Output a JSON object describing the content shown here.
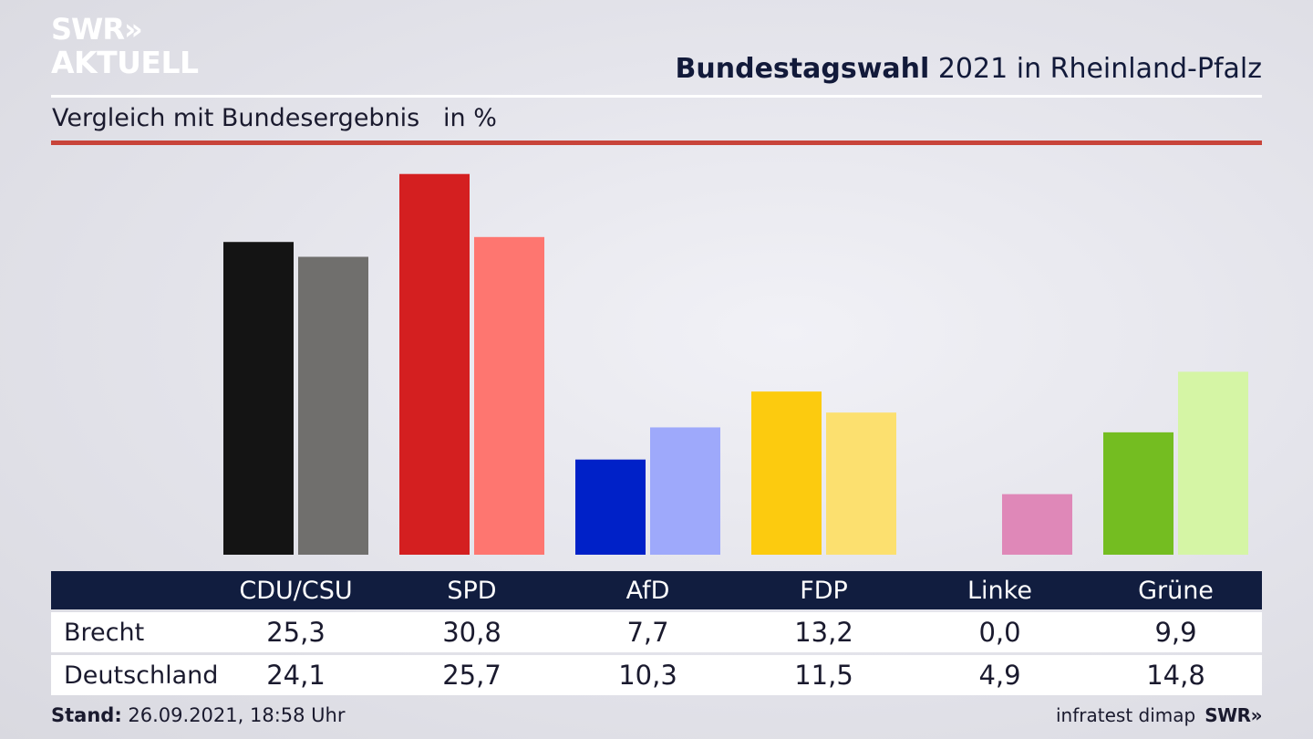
{
  "brand": {
    "logo_line1": "SWR»",
    "logo_line2": "AKTUELL",
    "footer_logo": "SWR»"
  },
  "header": {
    "title_bold": "Bundestagswahl",
    "title_rest": " 2021 in Rheinland-Pfalz",
    "subtitle": "Vergleich mit Bundesergebnis   in %"
  },
  "colors": {
    "accent_rule": "#c8443a",
    "table_header": "#111d3f"
  },
  "chart_data": {
    "type": "bar",
    "categories": [
      "CDU/CSU",
      "SPD",
      "AfD",
      "FDP",
      "Linke",
      "Grüne"
    ],
    "series": [
      {
        "name": "Brecht",
        "values": [
          25.3,
          30.8,
          7.7,
          13.2,
          0.0,
          9.9
        ],
        "colors": [
          "#141414",
          "#d41f20",
          "#0021c8",
          "#fccb0f",
          "#d66aa6",
          "#74bd21"
        ]
      },
      {
        "name": "Deutschland",
        "values": [
          24.1,
          25.7,
          10.3,
          11.5,
          4.9,
          14.8
        ],
        "colors": [
          "#706f6d",
          "#fe7670",
          "#9ea9fb",
          "#fce06f",
          "#df88b8",
          "#d5f5a5"
        ]
      }
    ],
    "value_strings": [
      [
        "25,3",
        "30,8",
        "7,7",
        "13,2",
        "0,0",
        "9,9"
      ],
      [
        "24,1",
        "25,7",
        "10,3",
        "11,5",
        "4,9",
        "14,8"
      ]
    ],
    "ylim": [
      0,
      31
    ]
  },
  "footer": {
    "stand_label": "Stand:",
    "stand_value": " 26.09.2021, 18:58 Uhr",
    "source": "infratest dimap"
  }
}
